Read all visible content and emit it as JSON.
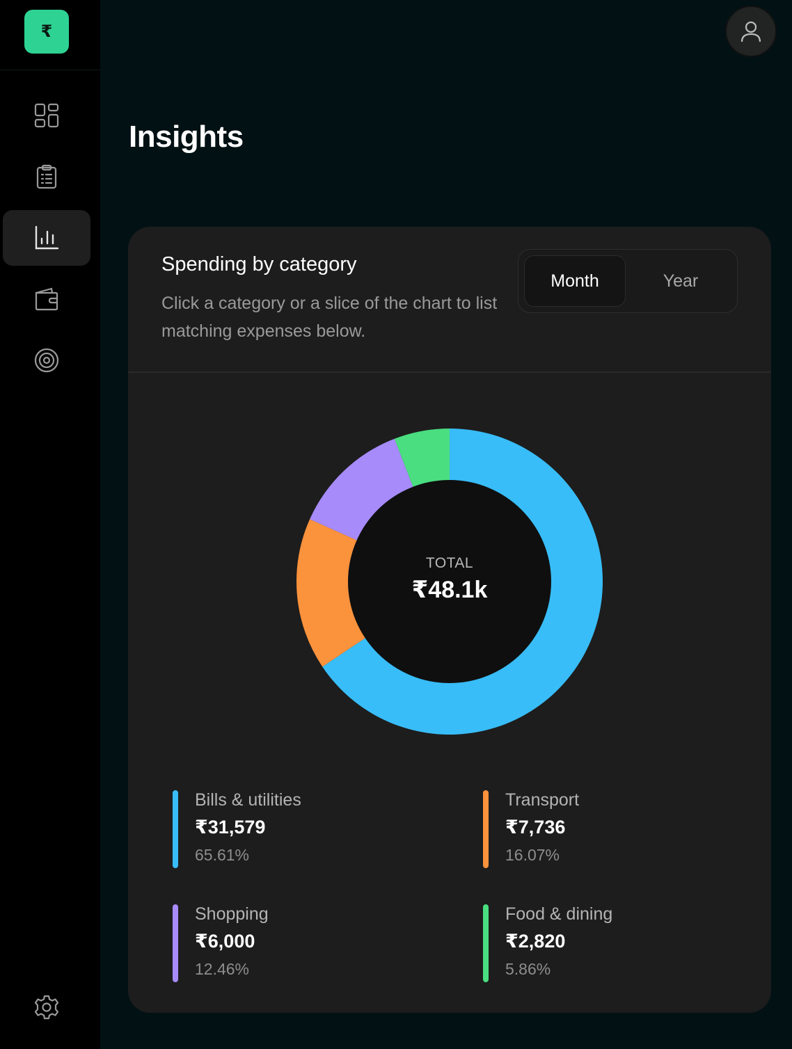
{
  "sidebar": {
    "logo_symbol": "₹",
    "items": [
      {
        "icon": "dashboard-grid-icon"
      },
      {
        "icon": "clipboard-list-icon"
      },
      {
        "icon": "bar-chart-icon",
        "active": true
      },
      {
        "icon": "wallet-icon"
      },
      {
        "icon": "target-icon"
      }
    ],
    "settings_icon": "gear-icon"
  },
  "header": {
    "avatar_icon": "user-icon"
  },
  "page": {
    "title": "Insights"
  },
  "card": {
    "title": "Spending by category",
    "subtitle": "Click a category or a slice of the chart to list matching expenses below.",
    "toggle": {
      "options": [
        "Month",
        "Year"
      ],
      "selected": "Month"
    },
    "center_label": "TOTAL",
    "center_value": "₹48.1k"
  },
  "colors": {
    "accent": "#2ed394",
    "bills": "#38bdf8",
    "transport": "#fb923c",
    "shopping": "#a78bfa",
    "food": "#4ade80"
  },
  "chart_data": {
    "type": "pie",
    "donut": true,
    "categories": [
      "Bills & utilities",
      "Transport",
      "Shopping",
      "Food & dining"
    ],
    "values": [
      31579,
      7736,
      6000,
      2820
    ],
    "percentages": [
      65.61,
      16.07,
      12.46,
      5.86
    ],
    "colors": [
      "#38bdf8",
      "#fb923c",
      "#a78bfa",
      "#4ade80"
    ]
  },
  "legend": [
    {
      "name": "Bills & utilities",
      "amount": "₹31,579",
      "pct": "65.61%"
    },
    {
      "name": "Transport",
      "amount": "₹7,736",
      "pct": "16.07%"
    },
    {
      "name": "Shopping",
      "amount": "₹6,000",
      "pct": "12.46%"
    },
    {
      "name": "Food & dining",
      "amount": "₹2,820",
      "pct": "5.86%"
    }
  ]
}
